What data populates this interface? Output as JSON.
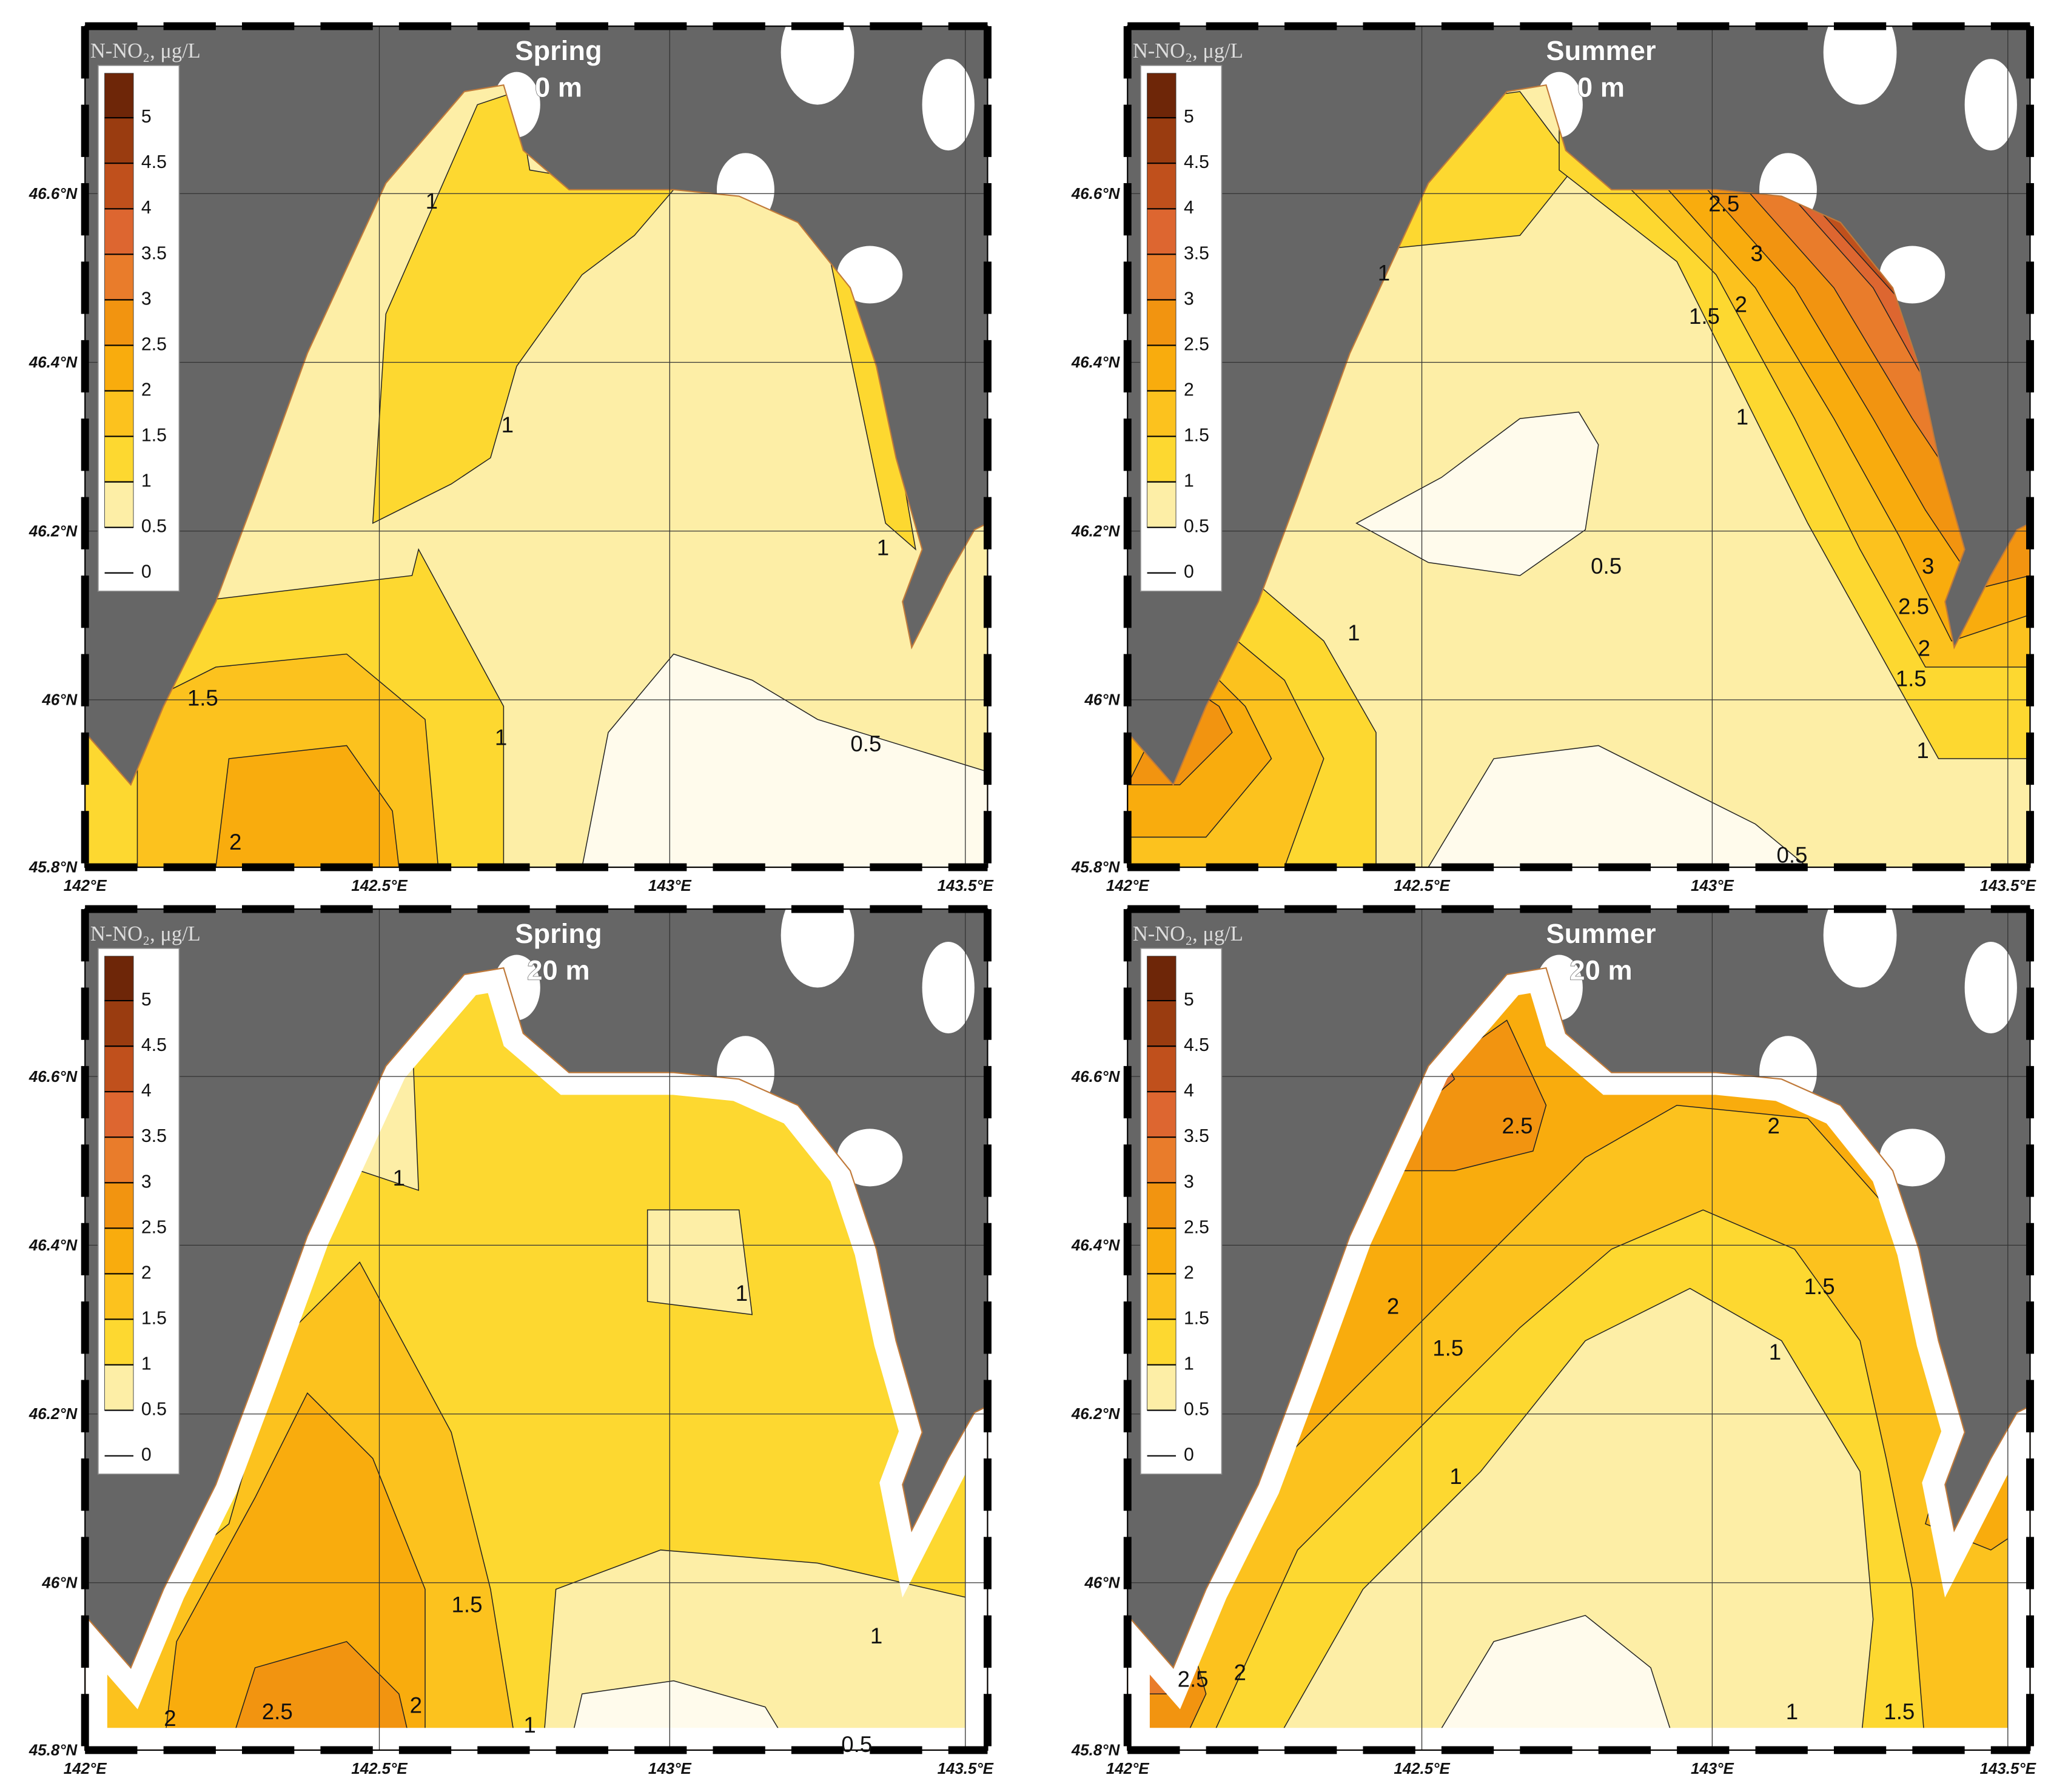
{
  "legend_title": "N-NO₂, μg/L",
  "legend_labels": [
    "0",
    "0.5",
    "1",
    "1.5",
    "2",
    "2.5",
    "3",
    "3.5",
    "4",
    "4.5",
    "5"
  ],
  "colormap": [
    "#fffbec",
    "#fdeea6",
    "#fdd830",
    "#fcc21e",
    "#f9ac0d",
    "#f29410",
    "#e97c2b",
    "#dd6630",
    "#c0501c",
    "#9a3c10",
    "#6e2608"
  ],
  "lat_labels": [
    "46.6°N",
    "46.4°N",
    "46.2°N",
    "46°N",
    "45.8°N"
  ],
  "lon_labels": [
    "142°E",
    "142.5°E",
    "143°E",
    "143.5°E"
  ],
  "panels": [
    {
      "season": "Spring",
      "depth": "0 m",
      "contour_labels": [
        "1",
        "1",
        "1",
        "1.5",
        "2",
        "1",
        "0.5"
      ]
    },
    {
      "season": "Summer",
      "depth": "0 m",
      "contour_labels": [
        "1",
        "1",
        "1",
        "1",
        "2.5",
        "3",
        "2",
        "1.5",
        "0.5",
        "3",
        "2.5",
        "2",
        "1.5",
        "0.5"
      ]
    },
    {
      "season": "Spring",
      "depth": "20 m",
      "contour_labels": [
        "1",
        "1",
        "1.5",
        "1",
        "2",
        "2.5",
        "2",
        "1",
        "0.5"
      ]
    },
    {
      "season": "Summer",
      "depth": "20 m",
      "contour_labels": [
        "2.5",
        "2",
        "2",
        "1.5",
        "1.5",
        "1",
        "1",
        "2.5",
        "2",
        "1",
        "1.5"
      ]
    }
  ]
}
